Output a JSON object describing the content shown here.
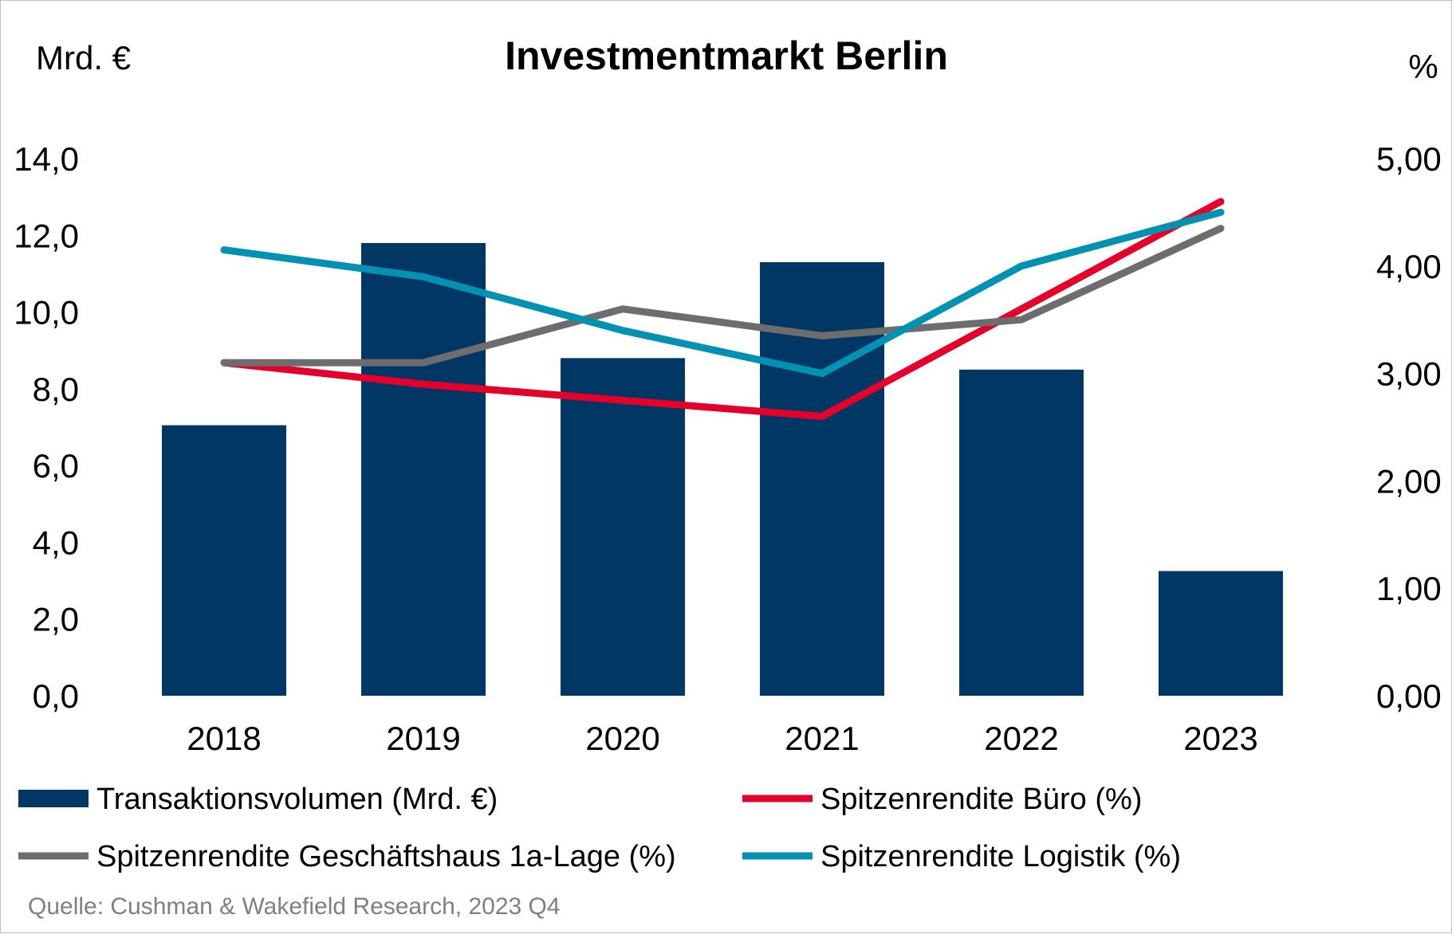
{
  "chart_data": {
    "type": "bar",
    "title": "Investmentmarkt Berlin",
    "left_unit": "Mrd. €",
    "right_unit": "%",
    "categories": [
      "2018",
      "2019",
      "2020",
      "2021",
      "2022",
      "2023"
    ],
    "y_left": {
      "range": [
        0,
        14
      ],
      "ticks": [
        "0,0",
        "2,0",
        "4,0",
        "6,0",
        "8,0",
        "10,0",
        "12,0",
        "14,0"
      ]
    },
    "y_right": {
      "range": [
        0,
        5
      ],
      "ticks": [
        "0,00",
        "1,00",
        "2,00",
        "3,00",
        "4,00",
        "5,00"
      ]
    },
    "bar_series": {
      "name": "Transaktionsvolumen (Mrd. €)",
      "color": "#003764",
      "axis": "left",
      "values": [
        7.05,
        11.8,
        8.8,
        11.3,
        8.5,
        3.25
      ]
    },
    "line_series": [
      {
        "name": "Spitzenrendite Büro (%)",
        "color": "#e4002b",
        "axis": "right",
        "values": [
          3.1,
          2.9,
          2.75,
          2.6,
          3.6,
          4.6
        ]
      },
      {
        "name": "Spitzenrendite Geschäftshaus 1a-Lage (%)",
        "color": "#6d6d6d",
        "axis": "right",
        "values": [
          3.1,
          3.1,
          3.6,
          3.35,
          3.5,
          4.35
        ]
      },
      {
        "name": "Spitzenrendite Logistik (%)",
        "color": "#0091b3",
        "axis": "right",
        "values": [
          4.15,
          3.9,
          3.4,
          3.0,
          4.0,
          4.5
        ]
      }
    ],
    "legend": [
      "Transaktionsvolumen (Mrd. €)",
      "Spitzenrendite Büro (%)",
      "Spitzenrendite Geschäftshaus 1a-Lage (%)",
      "Spitzenrendite Logistik (%)"
    ],
    "source": "Quelle: Cushman & Wakefield Research, 2023 Q4"
  }
}
